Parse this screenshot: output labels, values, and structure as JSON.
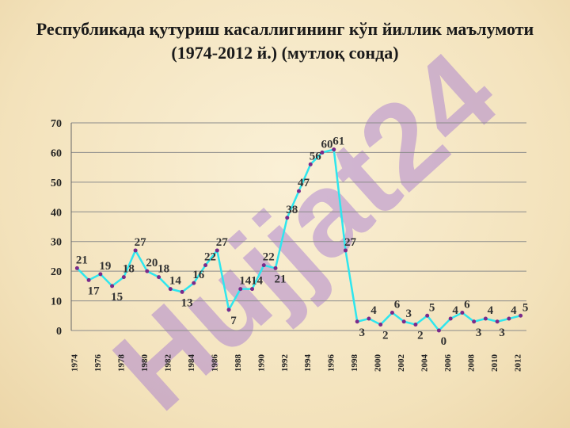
{
  "chart_data": {
    "type": "line",
    "title": "Республикада қутуриш касаллигининг кўп йиллик маълумоти (1974-2012 й.) (мутлоқ сонда)",
    "watermark": "Hujjat24",
    "categories": [
      "1974",
      null,
      "1976",
      null,
      "1978",
      null,
      "1980",
      null,
      "1982",
      null,
      "1984",
      null,
      "1986",
      null,
      "1988",
      null,
      "1990",
      null,
      "1992",
      null,
      "1994",
      null,
      "1996",
      null,
      "1998",
      null,
      "2000",
      null,
      "2002",
      null,
      "2004",
      null,
      "2006",
      null,
      "2008",
      null,
      "2010",
      null,
      "2012"
    ],
    "series": [
      {
        "name": null,
        "color": "#2ee6ee",
        "marker_color": "#7a2a8a",
        "values": [
          21,
          17,
          19,
          15,
          18,
          27,
          20,
          18,
          14,
          13,
          16,
          22,
          27,
          7,
          14,
          14,
          22,
          21,
          38,
          47,
          56,
          60,
          61,
          27,
          3,
          4,
          2,
          6,
          3,
          2,
          5,
          0,
          4,
          6,
          3,
          4,
          3,
          4,
          5
        ]
      }
    ],
    "ylim": [
      0,
      70
    ],
    "yticks": [
      0,
      10,
      20,
      30,
      40,
      50,
      60,
      70
    ],
    "grid": true
  }
}
